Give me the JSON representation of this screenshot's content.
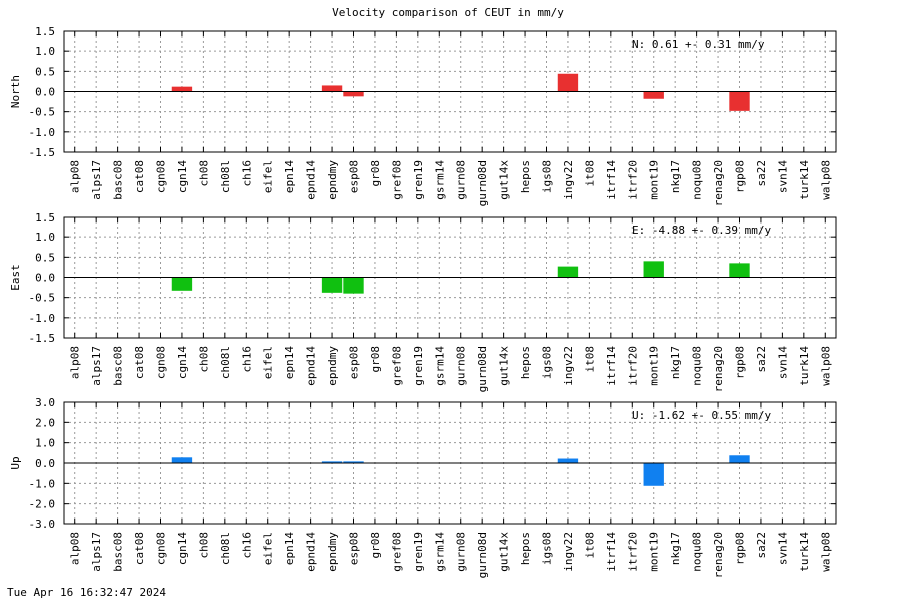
{
  "title": "Velocity comparison of CEUT in mm/y",
  "timestamp": "Tue Apr 16 16:32:47 2024",
  "chart_data": [
    {
      "type": "bar",
      "panel": "north",
      "title": "Velocity comparison of CEUT in mm/y",
      "ylabel": "North",
      "annotation": "N:   0.61 +-  0.31 mm/y",
      "color": "#e83030",
      "ylim": [
        -1.5,
        1.5
      ],
      "yticks": [
        1.5,
        1.0,
        0.5,
        0.0,
        -0.5,
        -1.0,
        -1.5
      ],
      "ytick_labels": [
        "1.5",
        "1.0",
        "0.5",
        "0.0",
        "-0.5",
        "-1.0",
        "-1.5"
      ],
      "grid": true,
      "categories": [
        "alp08",
        "alps17",
        "basc08",
        "cat08",
        "cgn08",
        "cgn14",
        "ch08",
        "ch08l",
        "ch16",
        "eifel",
        "epn14",
        "epnd14",
        "epndmy",
        "esp08",
        "gr08",
        "gref08",
        "gren19",
        "gsrm14",
        "gurn08",
        "gurn08d",
        "gut14x",
        "hepos",
        "igs08",
        "ingv22",
        "it08",
        "itrf14",
        "itrf20",
        "mont19",
        "nkg17",
        "noqu08",
        "renag20",
        "rgp08",
        "sa22",
        "svn14",
        "turk14",
        "walp08"
      ],
      "values": [
        null,
        null,
        null,
        null,
        null,
        0.12,
        null,
        null,
        null,
        null,
        null,
        null,
        0.15,
        -0.12,
        null,
        null,
        null,
        null,
        null,
        null,
        null,
        null,
        null,
        0.44,
        null,
        null,
        null,
        -0.18,
        null,
        null,
        null,
        -0.48,
        null,
        null,
        null,
        null
      ]
    },
    {
      "type": "bar",
      "panel": "east",
      "ylabel": "East",
      "annotation": "E:  -4.88 +-  0.39 mm/y",
      "color": "#10c010",
      "ylim": [
        -1.5,
        1.5
      ],
      "yticks": [
        1.5,
        1.0,
        0.5,
        0.0,
        -0.5,
        -1.0,
        -1.5
      ],
      "ytick_labels": [
        "1.5",
        "1.0",
        "0.5",
        "0.0",
        "-0.5",
        "-1.0",
        "-1.5"
      ],
      "grid": true,
      "categories": [
        "alp08",
        "alps17",
        "basc08",
        "cat08",
        "cgn08",
        "cgn14",
        "ch08",
        "ch08l",
        "ch16",
        "eifel",
        "epn14",
        "epnd14",
        "epndmy",
        "esp08",
        "gr08",
        "gref08",
        "gren19",
        "gsrm14",
        "gurn08",
        "gurn08d",
        "gut14x",
        "hepos",
        "igs08",
        "ingv22",
        "it08",
        "itrf14",
        "itrf20",
        "mont19",
        "nkg17",
        "noqu08",
        "renag20",
        "rgp08",
        "sa22",
        "svn14",
        "turk14",
        "walp08"
      ],
      "values": [
        null,
        null,
        null,
        null,
        null,
        -0.33,
        null,
        null,
        null,
        null,
        null,
        null,
        -0.38,
        -0.4,
        null,
        null,
        null,
        null,
        null,
        null,
        null,
        null,
        null,
        0.27,
        null,
        null,
        null,
        0.4,
        null,
        null,
        null,
        0.35,
        null,
        null,
        null,
        null
      ]
    },
    {
      "type": "bar",
      "panel": "up",
      "ylabel": "Up",
      "annotation": "U:  -1.62 +-  0.55 mm/y",
      "color": "#1080f0",
      "ylim": [
        -3.0,
        3.0
      ],
      "yticks": [
        3.0,
        2.0,
        1.0,
        0.0,
        -1.0,
        -2.0,
        -3.0
      ],
      "ytick_labels": [
        "3.0",
        "2.0",
        "1.0",
        "0.0",
        "-1.0",
        "-2.0",
        "-3.0"
      ],
      "grid": true,
      "categories": [
        "alp08",
        "alps17",
        "basc08",
        "cat08",
        "cgn08",
        "cgn14",
        "ch08",
        "ch08l",
        "ch16",
        "eifel",
        "epn14",
        "epnd14",
        "epndmy",
        "esp08",
        "gr08",
        "gref08",
        "gren19",
        "gsrm14",
        "gurn08",
        "gurn08d",
        "gut14x",
        "hepos",
        "igs08",
        "ingv22",
        "it08",
        "itrf14",
        "itrf20",
        "mont19",
        "nkg17",
        "noqu08",
        "renag20",
        "rgp08",
        "sa22",
        "svn14",
        "turk14",
        "walp08"
      ],
      "values": [
        null,
        null,
        null,
        null,
        null,
        0.28,
        null,
        null,
        null,
        null,
        null,
        null,
        0.08,
        0.08,
        null,
        null,
        null,
        null,
        null,
        null,
        null,
        null,
        null,
        0.22,
        null,
        null,
        null,
        -1.12,
        null,
        null,
        null,
        0.38,
        null,
        null,
        null,
        null
      ]
    }
  ]
}
